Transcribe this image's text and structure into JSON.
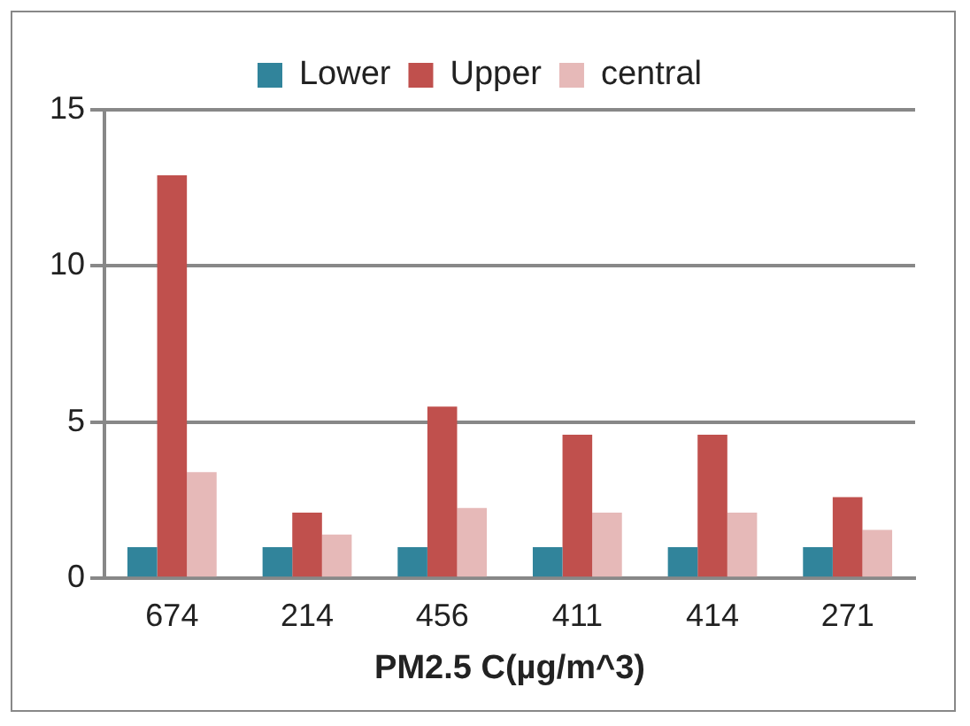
{
  "chart_data": {
    "type": "bar",
    "xlabel": "PM2.5 C(µg/m^3)",
    "categories": [
      "674",
      "214",
      "456",
      "411",
      "414",
      "271"
    ],
    "series": [
      {
        "name": "Lower",
        "color": "#31849b",
        "values": [
          1,
          1,
          1,
          1,
          1,
          1
        ]
      },
      {
        "name": "Upper",
        "color": "#c0504d",
        "values": [
          12.9,
          2.1,
          5.5,
          4.6,
          4.6,
          2.6
        ]
      },
      {
        "name": "central",
        "color": "#e6b9b8",
        "values": [
          3.4,
          1.4,
          2.25,
          2.1,
          2.1,
          1.55
        ]
      }
    ],
    "ylim": [
      0,
      15
    ],
    "yticks": [
      0,
      5,
      10,
      15
    ],
    "grid": "y",
    "legend": "top"
  }
}
